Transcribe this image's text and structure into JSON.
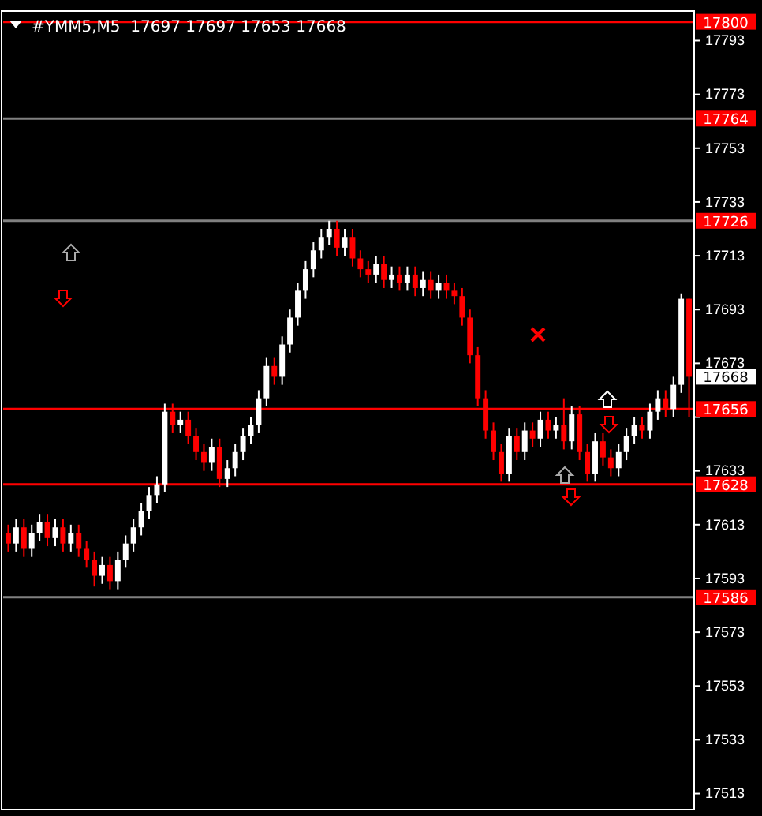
{
  "chart_data": {
    "type": "candlestick",
    "title": "#YMM5,M5  17697 17697 17653 17668",
    "categories": [
      null,
      null,
      null,
      null,
      null,
      null,
      null,
      null,
      null,
      null,
      null,
      null,
      null,
      null,
      null,
      null,
      null,
      null,
      null,
      null,
      null,
      null,
      null,
      null,
      null,
      null,
      null,
      null,
      null,
      null,
      null,
      null,
      null,
      null,
      null,
      null,
      null,
      null,
      null,
      null,
      null,
      null,
      null,
      null,
      null,
      null,
      null,
      null,
      null,
      null,
      null,
      null,
      null,
      null,
      null,
      null,
      null,
      null,
      null,
      null,
      null,
      null,
      null,
      null,
      null,
      null,
      null,
      null,
      null,
      null,
      null,
      null,
      null,
      null,
      null,
      null,
      null,
      null,
      null,
      null,
      null,
      null,
      null,
      null,
      null,
      null,
      null,
      null
    ],
    "ohlc": [
      [
        17610,
        17613,
        17603,
        17606
      ],
      [
        17606,
        17615,
        17603,
        17612
      ],
      [
        17612,
        17615,
        17601,
        17604
      ],
      [
        17604,
        17613,
        17601,
        17610
      ],
      [
        17610,
        17617,
        17607,
        17614
      ],
      [
        17614,
        17617,
        17605,
        17608
      ],
      [
        17608,
        17615,
        17605,
        17612
      ],
      [
        17612,
        17615,
        17603,
        17606
      ],
      [
        17606,
        17613,
        17603,
        17610
      ],
      [
        17610,
        17613,
        17601,
        17604
      ],
      [
        17604,
        17607,
        17597,
        17600
      ],
      [
        17600,
        17603,
        17590,
        17594
      ],
      [
        17594,
        17601,
        17591,
        17598
      ],
      [
        17598,
        17601,
        17589,
        17592
      ],
      [
        17592,
        17603,
        17589,
        17600
      ],
      [
        17600,
        17609,
        17597,
        17606
      ],
      [
        17606,
        17615,
        17603,
        17612
      ],
      [
        17612,
        17621,
        17609,
        17618
      ],
      [
        17618,
        17627,
        17615,
        17624
      ],
      [
        17624,
        17631,
        17621,
        17628
      ],
      [
        17628,
        17658,
        17625,
        17655
      ],
      [
        17655,
        17658,
        17647,
        17650
      ],
      [
        17650,
        17655,
        17647,
        17652
      ],
      [
        17652,
        17655,
        17643,
        17646
      ],
      [
        17646,
        17649,
        17637,
        17640
      ],
      [
        17640,
        17643,
        17633,
        17636
      ],
      [
        17636,
        17645,
        17633,
        17642
      ],
      [
        17642,
        17645,
        17627,
        17630
      ],
      [
        17630,
        17637,
        17627,
        17634
      ],
      [
        17634,
        17643,
        17631,
        17640
      ],
      [
        17640,
        17649,
        17637,
        17646
      ],
      [
        17646,
        17653,
        17643,
        17650
      ],
      [
        17650,
        17663,
        17647,
        17660
      ],
      [
        17660,
        17675,
        17657,
        17672
      ],
      [
        17672,
        17675,
        17665,
        17668
      ],
      [
        17668,
        17683,
        17665,
        17680
      ],
      [
        17680,
        17693,
        17677,
        17690
      ],
      [
        17690,
        17703,
        17687,
        17700
      ],
      [
        17700,
        17711,
        17697,
        17708
      ],
      [
        17708,
        17718,
        17705,
        17715
      ],
      [
        17715,
        17723,
        17712,
        17720
      ],
      [
        17720,
        17726,
        17717,
        17723
      ],
      [
        17723,
        17726,
        17713,
        17716
      ],
      [
        17716,
        17723,
        17713,
        17720
      ],
      [
        17720,
        17723,
        17709,
        17712
      ],
      [
        17712,
        17715,
        17705,
        17708
      ],
      [
        17708,
        17711,
        17703,
        17706
      ],
      [
        17706,
        17713,
        17703,
        17710
      ],
      [
        17710,
        17713,
        17701,
        17704
      ],
      [
        17704,
        17709,
        17701,
        17706
      ],
      [
        17706,
        17709,
        17700,
        17703
      ],
      [
        17703,
        17709,
        17700,
        17706
      ],
      [
        17706,
        17709,
        17698,
        17701
      ],
      [
        17701,
        17707,
        17698,
        17704
      ],
      [
        17704,
        17707,
        17697,
        17700
      ],
      [
        17700,
        17706,
        17697,
        17703
      ],
      [
        17703,
        17706,
        17697,
        17700
      ],
      [
        17700,
        17703,
        17695,
        17698
      ],
      [
        17698,
        17701,
        17687,
        17690
      ],
      [
        17690,
        17693,
        17673,
        17676
      ],
      [
        17676,
        17679,
        17657,
        17660
      ],
      [
        17660,
        17663,
        17645,
        17648
      ],
      [
        17648,
        17651,
        17637,
        17640
      ],
      [
        17640,
        17643,
        17629,
        17632
      ],
      [
        17632,
        17649,
        17629,
        17646
      ],
      [
        17646,
        17649,
        17637,
        17640
      ],
      [
        17640,
        17651,
        17637,
        17648
      ],
      [
        17648,
        17651,
        17642,
        17645
      ],
      [
        17645,
        17655,
        17642,
        17652
      ],
      [
        17652,
        17655,
        17645,
        17648
      ],
      [
        17648,
        17653,
        17645,
        17650
      ],
      [
        17650,
        17660,
        17641,
        17644
      ],
      [
        17644,
        17657,
        17641,
        17654
      ],
      [
        17654,
        17657,
        17637,
        17640
      ],
      [
        17640,
        17643,
        17629,
        17632
      ],
      [
        17632,
        17647,
        17629,
        17644
      ],
      [
        17644,
        17647,
        17635,
        17638
      ],
      [
        17638,
        17641,
        17631,
        17634
      ],
      [
        17634,
        17643,
        17631,
        17640
      ],
      [
        17640,
        17649,
        17637,
        17646
      ],
      [
        17646,
        17653,
        17643,
        17650
      ],
      [
        17650,
        17653,
        17645,
        17648
      ],
      [
        17648,
        17658,
        17645,
        17655
      ],
      [
        17655,
        17663,
        17652,
        17660
      ],
      [
        17660,
        17663,
        17653,
        17656
      ],
      [
        17656,
        17668,
        17653,
        17665
      ],
      [
        17665,
        17699,
        17662,
        17697
      ],
      [
        17697,
        17697,
        17653,
        17668
      ]
    ],
    "colors": [
      "#ff0000",
      "#ffffff",
      "#ff0000",
      "#ffffff",
      "#ffffff",
      "#ff0000",
      "#ffffff",
      "#ff0000",
      "#ffffff",
      "#ff0000",
      "#ff0000",
      "#ff0000",
      "#ffffff",
      "#ff0000",
      "#ffffff",
      "#ffffff",
      "#ffffff",
      "#ffffff",
      "#ffffff",
      "#ffffff",
      "#ffffff",
      "#ff0000",
      "#ffffff",
      "#ff0000",
      "#ff0000",
      "#ff0000",
      "#ffffff",
      "#ff0000",
      "#ffffff",
      "#ffffff",
      "#ffffff",
      "#ffffff",
      "#ffffff",
      "#ffffff",
      "#ff0000",
      "#ffffff",
      "#ffffff",
      "#ffffff",
      "#ffffff",
      "#ffffff",
      "#ffffff",
      "#ffffff",
      "#ff0000",
      "#ffffff",
      "#ff0000",
      "#ff0000",
      "#ff0000",
      "#ffffff",
      "#ff0000",
      "#ffffff",
      "#ff0000",
      "#ffffff",
      "#ff0000",
      "#ffffff",
      "#ff0000",
      "#ffffff",
      "#ff0000",
      "#ff0000",
      "#ff0000",
      "#ff0000",
      "#ff0000",
      "#ff0000",
      "#ff0000",
      "#ff0000",
      "#ffffff",
      "#ff0000",
      "#ffffff",
      "#ff0000",
      "#ffffff",
      "#ff0000",
      "#ffffff",
      "#ff0000",
      "#ffffff",
      "#ff0000",
      "#ff0000",
      "#ffffff",
      "#ff0000",
      "#ff0000",
      "#ffffff",
      "#ffffff",
      "#ffffff",
      "#ff0000",
      "#ffffff",
      "#ffffff",
      "#ff0000",
      "#ffffff",
      "#ffffff",
      "#ff0000"
    ],
    "ylim": [
      17507,
      17804
    ],
    "yticks": [
      17513,
      17533,
      17553,
      17573,
      17593,
      17613,
      17633,
      {
        "value": 17653,
        "label": null
      },
      17673,
      17693,
      17713,
      17733,
      17753,
      17773,
      17793
    ],
    "tick_labels": "y",
    "ref_lines": [
      {
        "axis": "y",
        "value": 17800,
        "label": "17800",
        "color": "#ff0000"
      },
      {
        "axis": "y",
        "value": 17764,
        "label": "17764",
        "color": "#808080"
      },
      {
        "axis": "y",
        "value": 17726,
        "label": "17726",
        "color": "#808080"
      },
      {
        "axis": "y",
        "value": 17656,
        "label": "17656",
        "color": "#ff0000"
      },
      {
        "axis": "y",
        "value": 17628,
        "label": "17628",
        "color": "#ff0000"
      },
      {
        "axis": "y",
        "value": 17586,
        "label": "17586",
        "color": "#808080"
      }
    ],
    "annotations": [
      "17668"
    ]
  }
}
